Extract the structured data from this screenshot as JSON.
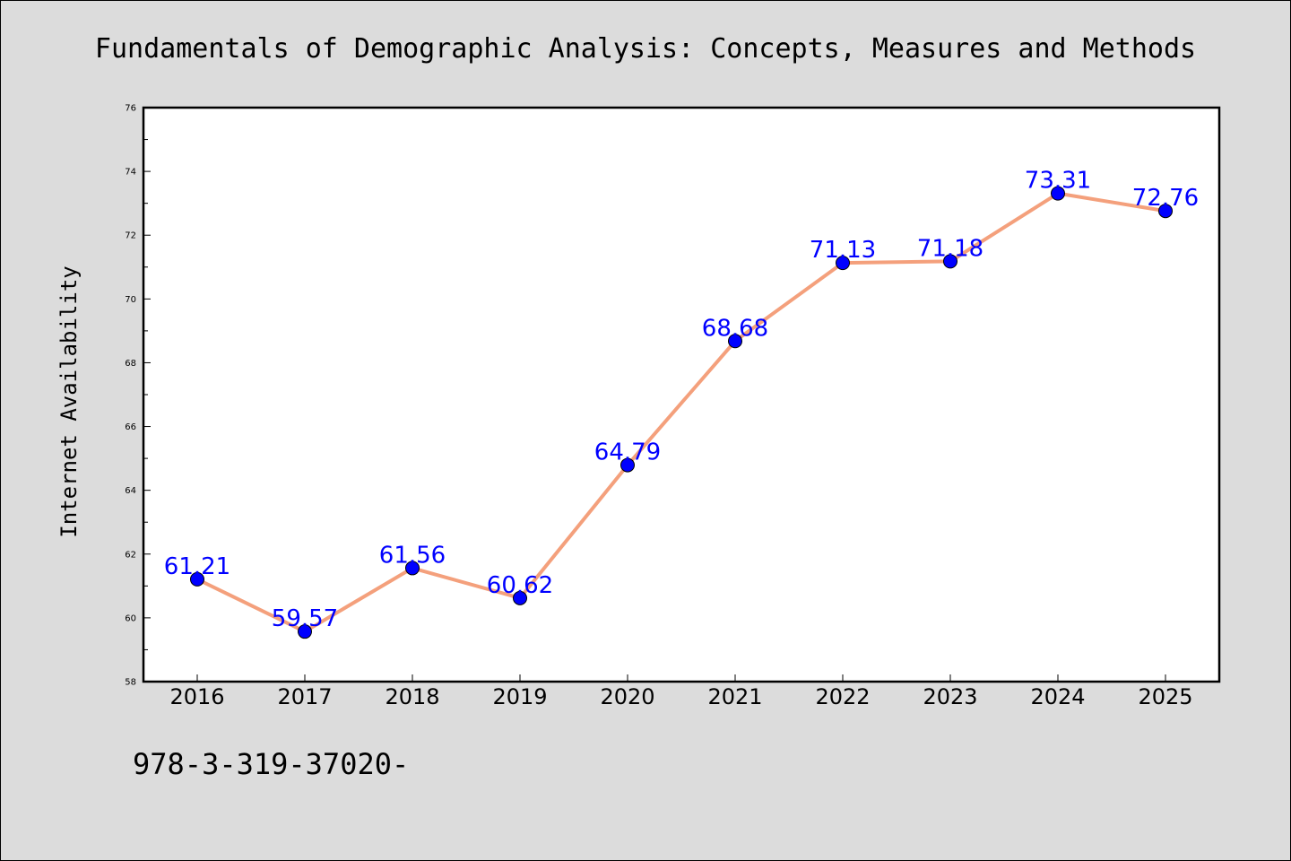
{
  "chart_data": {
    "type": "line",
    "title": "Fundamentals of Demographic Analysis: Concepts, Measures and Methods",
    "xlabel": "",
    "ylabel": "Internet Availability",
    "categories": [
      "2016",
      "2017",
      "2018",
      "2019",
      "2020",
      "2021",
      "2022",
      "2023",
      "2024",
      "2025"
    ],
    "series": [
      {
        "values": [
          61.21,
          59.57,
          61.56,
          60.62,
          64.79,
          68.68,
          71.13,
          71.18,
          73.31,
          72.76
        ],
        "labels": [
          "61.21",
          "59.57",
          "61.56",
          "60.62",
          "64.79",
          "68.68",
          "71.13",
          "71.18",
          "73.31",
          "72.76"
        ],
        "line_color": "#f4a07c",
        "marker_color": "#0000ff"
      }
    ],
    "ylim": [
      58,
      76
    ],
    "yticks": [
      58,
      60,
      62,
      64,
      66,
      68,
      70,
      72,
      74,
      76
    ],
    "ytick_labels": [
      "58",
      "60",
      "62",
      "64",
      "66",
      "68",
      "70",
      "72",
      "74",
      "76"
    ],
    "grid": false,
    "legend": "none",
    "footer": "978-3-319-37020-"
  },
  "colors": {
    "background": "#dcdcdc",
    "plot_area": "#ffffff",
    "axis": "#000000",
    "data_label": "#0000ff"
  }
}
